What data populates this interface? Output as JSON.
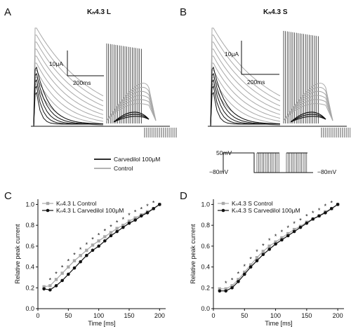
{
  "panels": {
    "A": {
      "letter": "A",
      "title": "Kₙ4.3 L",
      "scale_current": "10μA",
      "scale_time": "200ms"
    },
    "B": {
      "letter": "B",
      "title": "Kₙ4.3 S",
      "scale_current": "10μA",
      "scale_time": "200ms"
    },
    "C": {
      "letter": "C"
    },
    "D": {
      "letter": "D"
    }
  },
  "trace_legend": {
    "carvedilol": "Carvedilol 100μM",
    "control": "Control"
  },
  "protocol": {
    "v_high": "50mV",
    "v_low_left": "−80mV",
    "v_low_right": "−80mV"
  },
  "colors": {
    "carvedilol": "#111111",
    "control": "#a8a8a8"
  },
  "chart_data": [
    {
      "type": "line",
      "panel": "C",
      "xlabel": "Time [ms]",
      "ylabel": "Relative peak current",
      "xlim": [
        0,
        210
      ],
      "ylim": [
        0.0,
        1.05
      ],
      "xticks": [
        0,
        50,
        100,
        150,
        200
      ],
      "yticks": [
        0.0,
        0.2,
        0.4,
        0.6,
        0.8,
        1.0
      ],
      "legend_position": "top-left",
      "x": [
        10,
        20,
        30,
        40,
        50,
        60,
        70,
        80,
        90,
        100,
        110,
        120,
        130,
        140,
        150,
        160,
        170,
        180,
        190,
        200
      ],
      "series": [
        {
          "name": "Kₙ4.3 L Control",
          "marker": "square",
          "color": "#a8a8a8",
          "values": [
            0.21,
            0.22,
            0.28,
            0.34,
            0.4,
            0.46,
            0.51,
            0.56,
            0.61,
            0.65,
            0.69,
            0.73,
            0.77,
            0.8,
            0.84,
            0.87,
            0.9,
            0.93,
            0.96,
            1.0
          ]
        },
        {
          "name": "Kₙ4.3 L Carvedilol 100μM",
          "marker": "circle",
          "color": "#111111",
          "values": [
            0.19,
            0.18,
            0.22,
            0.27,
            0.33,
            0.39,
            0.45,
            0.51,
            0.56,
            0.6,
            0.65,
            0.7,
            0.74,
            0.78,
            0.82,
            0.85,
            0.89,
            0.92,
            0.96,
            1.0
          ]
        }
      ],
      "significance_marker": "*"
    },
    {
      "type": "line",
      "panel": "D",
      "xlabel": "Time [ms]",
      "ylabel": "Relative peak current",
      "xlim": [
        0,
        210
      ],
      "ylim": [
        0.0,
        1.05
      ],
      "xticks": [
        0,
        50,
        100,
        150,
        200
      ],
      "yticks": [
        0.0,
        0.2,
        0.4,
        0.6,
        0.8,
        1.0
      ],
      "legend_position": "top-left",
      "x": [
        10,
        20,
        30,
        40,
        50,
        60,
        70,
        80,
        90,
        100,
        110,
        120,
        130,
        140,
        150,
        160,
        170,
        180,
        190,
        200
      ],
      "series": [
        {
          "name": "Kₙ4.3 S Control",
          "marker": "square",
          "color": "#a8a8a8",
          "values": [
            0.19,
            0.19,
            0.22,
            0.28,
            0.35,
            0.42,
            0.49,
            0.55,
            0.6,
            0.64,
            0.68,
            0.72,
            0.76,
            0.79,
            0.83,
            0.86,
            0.89,
            0.93,
            0.96,
            1.0
          ]
        },
        {
          "name": "Kₙ4.3 S Carvedilol 100μM",
          "marker": "circle",
          "color": "#111111",
          "values": [
            0.17,
            0.17,
            0.2,
            0.26,
            0.33,
            0.4,
            0.46,
            0.52,
            0.57,
            0.62,
            0.66,
            0.7,
            0.74,
            0.78,
            0.82,
            0.86,
            0.89,
            0.92,
            0.96,
            1.0
          ]
        }
      ],
      "significance_marker": "*"
    }
  ]
}
